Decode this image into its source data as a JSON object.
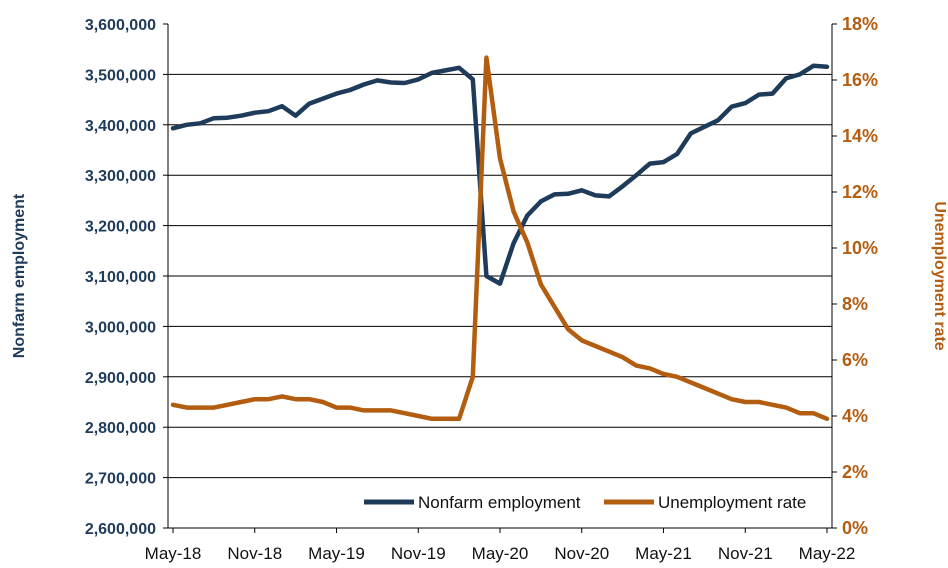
{
  "chart_data": {
    "type": "line",
    "title": "",
    "xlabel": "",
    "ylabel": "Nonfarm employment",
    "y2label": "Unemployment rate",
    "ylim": [
      2600000,
      3600000
    ],
    "y2lim": [
      0,
      18
    ],
    "yticks": [
      "2,600,000",
      "2,700,000",
      "2,800,000",
      "2,900,000",
      "3,000,000",
      "3,100,000",
      "3,200,000",
      "3,300,000",
      "3,400,000",
      "3,500,000",
      "3,600,000"
    ],
    "y2ticks": [
      "0%",
      "2%",
      "4%",
      "6%",
      "8%",
      "10%",
      "12%",
      "14%",
      "16%",
      "18%"
    ],
    "xticks": [
      "May-18",
      "Nov-18",
      "May-19",
      "Nov-19",
      "May-20",
      "Nov-20",
      "May-21",
      "Nov-21",
      "May-22"
    ],
    "grid": true,
    "legend": "bottom-right",
    "x": [
      "May-18",
      "Jun-18",
      "Jul-18",
      "Aug-18",
      "Sep-18",
      "Oct-18",
      "Nov-18",
      "Dec-18",
      "Jan-19",
      "Feb-19",
      "Mar-19",
      "Apr-19",
      "May-19",
      "Jun-19",
      "Jul-19",
      "Aug-19",
      "Sep-19",
      "Oct-19",
      "Nov-19",
      "Dec-19",
      "Jan-20",
      "Feb-20",
      "Mar-20",
      "Apr-20",
      "May-20",
      "Jun-20",
      "Jul-20",
      "Aug-20",
      "Sep-20",
      "Oct-20",
      "Nov-20",
      "Dec-20",
      "Jan-21",
      "Feb-21",
      "Mar-21",
      "Apr-21",
      "May-21",
      "Jun-21",
      "Jul-21",
      "Aug-21",
      "Sep-21",
      "Oct-21",
      "Nov-21",
      "Dec-21",
      "Jan-22",
      "Feb-22",
      "Mar-22",
      "Apr-22",
      "May-22"
    ],
    "series": [
      {
        "name": "Nonfarm employment",
        "axis": "left",
        "color": "#1f3b5a",
        "values": [
          3393000,
          3400000,
          3403000,
          3413000,
          3414000,
          3418000,
          3424000,
          3427000,
          3437000,
          3418000,
          3442000,
          3452000,
          3462000,
          3469000,
          3480000,
          3488000,
          3484000,
          3483000,
          3490000,
          3503000,
          3508000,
          3513000,
          3490000,
          3100000,
          3085000,
          3165000,
          3220000,
          3248000,
          3262000,
          3263000,
          3270000,
          3260000,
          3258000,
          3278000,
          3300000,
          3323000,
          3326000,
          3342000,
          3383000,
          3396000,
          3409000,
          3436000,
          3443000,
          3460000,
          3462000,
          3492000,
          3500000,
          3517000,
          3515000
        ]
      },
      {
        "name": "Unemployment rate",
        "axis": "right",
        "color": "#b35d10",
        "values": [
          4.4,
          4.3,
          4.3,
          4.3,
          4.4,
          4.5,
          4.6,
          4.6,
          4.7,
          4.6,
          4.6,
          4.5,
          4.3,
          4.3,
          4.2,
          4.2,
          4.2,
          4.1,
          4.0,
          3.9,
          3.9,
          3.9,
          5.4,
          16.8,
          13.2,
          11.3,
          10.2,
          8.7,
          7.9,
          7.1,
          6.7,
          6.5,
          6.3,
          6.1,
          5.8,
          5.7,
          5.5,
          5.4,
          5.2,
          5.0,
          4.8,
          4.6,
          4.5,
          4.5,
          4.4,
          4.3,
          4.1,
          4.1,
          3.9
        ]
      }
    ]
  }
}
